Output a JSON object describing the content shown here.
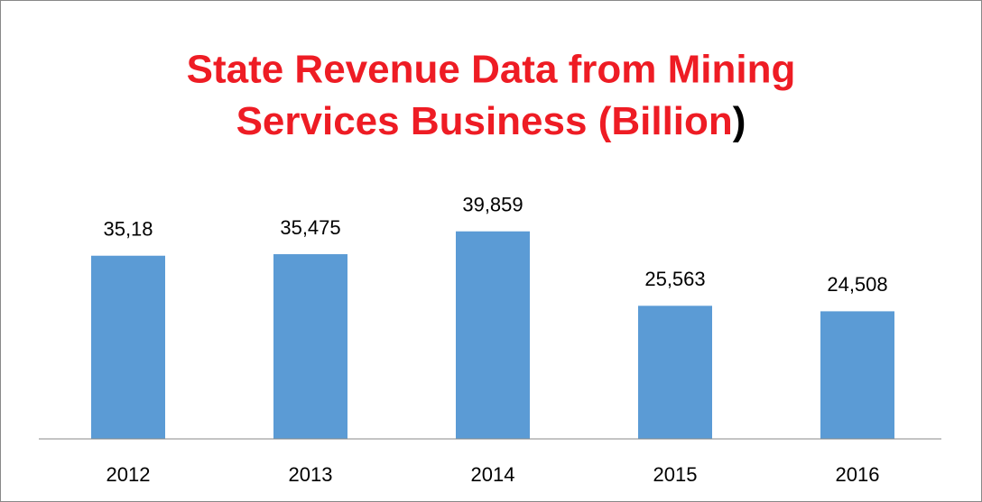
{
  "chart_data": {
    "type": "bar",
    "title": [
      "State Revenue Data from Mining",
      "Services Business (Billion)"
    ],
    "categories": [
      "2012",
      "2013",
      "2014",
      "2015",
      "2016"
    ],
    "values": [
      35.18,
      35.475,
      39.859,
      25.563,
      24.508
    ],
    "value_labels": [
      "35,18",
      "35,475",
      "39,859",
      "25,563",
      "24,508"
    ],
    "color": "#5b9bd5",
    "ylim": [
      0,
      45
    ]
  }
}
